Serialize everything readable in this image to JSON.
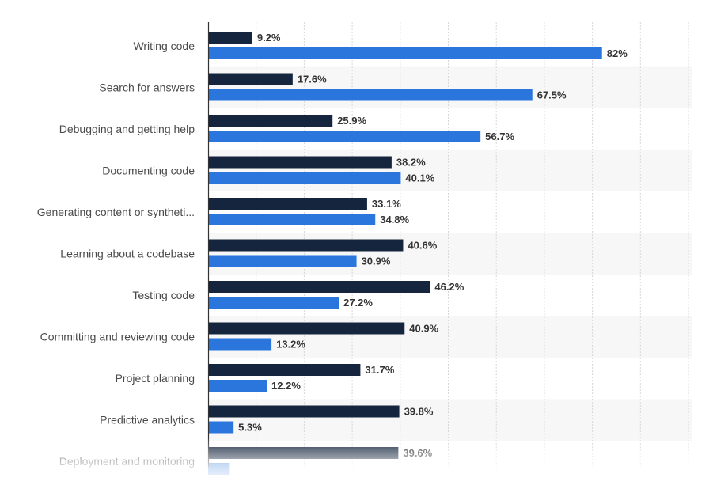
{
  "chart_data": {
    "type": "bar",
    "orientation": "horizontal",
    "categories": [
      "Writing code",
      "Search for answers",
      "Debugging and getting help",
      "Documenting code",
      "Generating content or syntheti...",
      "Learning about a codebase",
      "Testing code",
      "Committing and reviewing code",
      "Project planning",
      "Predictive analytics",
      "Deployment and monitoring"
    ],
    "series": [
      {
        "values": [
          9.2,
          17.6,
          25.9,
          38.2,
          33.1,
          40.6,
          46.2,
          40.9,
          31.7,
          39.8,
          39.6
        ],
        "labels": [
          "9.2%",
          "17.6%",
          "25.9%",
          "38.2%",
          "33.1%",
          "40.6%",
          "46.2%",
          "40.9%",
          "31.7%",
          "39.8%",
          "39.6%"
        ],
        "color": "#14253d"
      },
      {
        "values": [
          82,
          67.5,
          56.7,
          40.1,
          34.8,
          30.9,
          27.2,
          13.2,
          12.2,
          5.3,
          4.5
        ],
        "labels": [
          "82%",
          "67.5%",
          "56.7%",
          "40.1%",
          "34.8%",
          "30.9%",
          "27.2%",
          "13.2%",
          "12.2%",
          "5.3%",
          ""
        ],
        "color": "#2a76dc"
      }
    ],
    "xlim": [
      0,
      100
    ],
    "grid": true,
    "legend": "none",
    "title": "",
    "xlabel": "",
    "ylabel": ""
  }
}
